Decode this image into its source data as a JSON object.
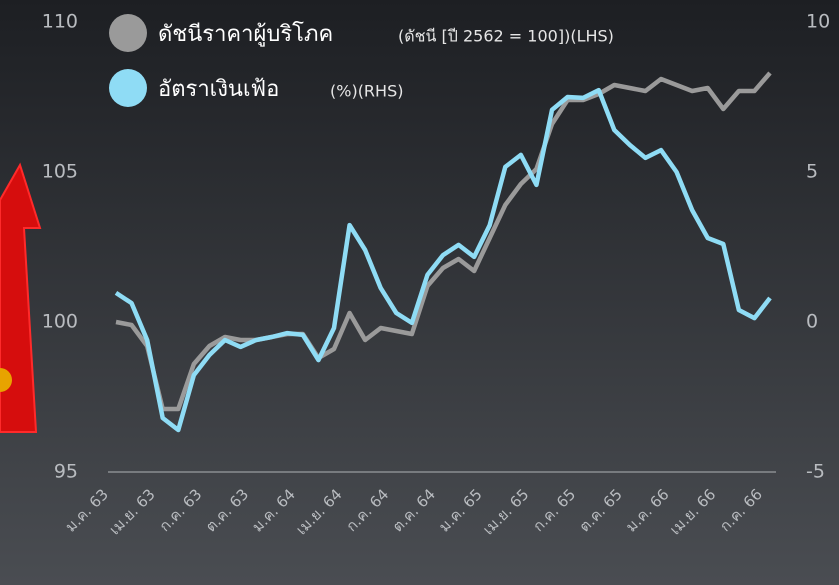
{
  "chart_data": {
    "type": "line",
    "categories": [
      "ม.ค. 63",
      null,
      null,
      "เม.ย. 63",
      null,
      null,
      "ก.ค. 63",
      null,
      null,
      "ต.ค. 63",
      null,
      null,
      "ม.ค. 64",
      null,
      null,
      "เม.ย. 64",
      null,
      null,
      "ก.ค. 64",
      null,
      null,
      "ต.ค. 64",
      null,
      null,
      "ม.ค. 65",
      null,
      null,
      "เม.ย. 65",
      null,
      null,
      "ก.ค. 65",
      null,
      null,
      "ต.ค. 65",
      null,
      null,
      "ม.ค. 66",
      null,
      null,
      "เม.ย. 66",
      null,
      null,
      "ก.ค. 66"
    ],
    "series": [
      {
        "name": "ดัชนีราคาผู้บริโภค",
        "note": "(ดัชนี [ปี 2562 = 100])(LHS)",
        "color": "#9a9a9a",
        "values": [
          100.0,
          99.9,
          99.2,
          97.1,
          97.1,
          98.6,
          99.2,
          99.5,
          99.4,
          99.4,
          99.5,
          99.6,
          99.6,
          98.8,
          99.1,
          100.3,
          99.4,
          99.8,
          99.7,
          99.6,
          101.2,
          101.8,
          102.1,
          101.7,
          102.8,
          103.9,
          104.6,
          105.1,
          106.6,
          107.4,
          107.4,
          107.6,
          107.9,
          107.8,
          107.7,
          108.1,
          107.9,
          107.7,
          107.8,
          107.1,
          107.7,
          107.7,
          108.3
        ]
      },
      {
        "name": "อัตราเงินเฟ้อ",
        "note": "(%)(RHS)",
        "color": "#8fdcf5",
        "axis": "y2",
        "values": [
          0.97,
          0.63,
          -0.6,
          -3.2,
          -3.6,
          -1.77,
          -1.1,
          -0.6,
          -0.83,
          -0.6,
          -0.5,
          -0.37,
          -0.43,
          -1.27,
          -0.2,
          3.23,
          2.4,
          1.13,
          0.3,
          -0.03,
          1.57,
          2.23,
          2.57,
          2.17,
          3.23,
          5.17,
          5.57,
          4.57,
          7.07,
          7.5,
          7.47,
          7.73,
          6.4,
          5.9,
          5.47,
          5.73,
          5.0,
          3.73,
          2.8,
          2.6,
          0.4,
          0.13,
          0.8
        ]
      }
    ],
    "ylim": [
      95,
      110
    ],
    "yticks": [
      95,
      100,
      105,
      110
    ],
    "y2lim": [
      -5,
      10
    ],
    "y2ticks": [
      -5,
      0,
      5,
      10
    ]
  }
}
